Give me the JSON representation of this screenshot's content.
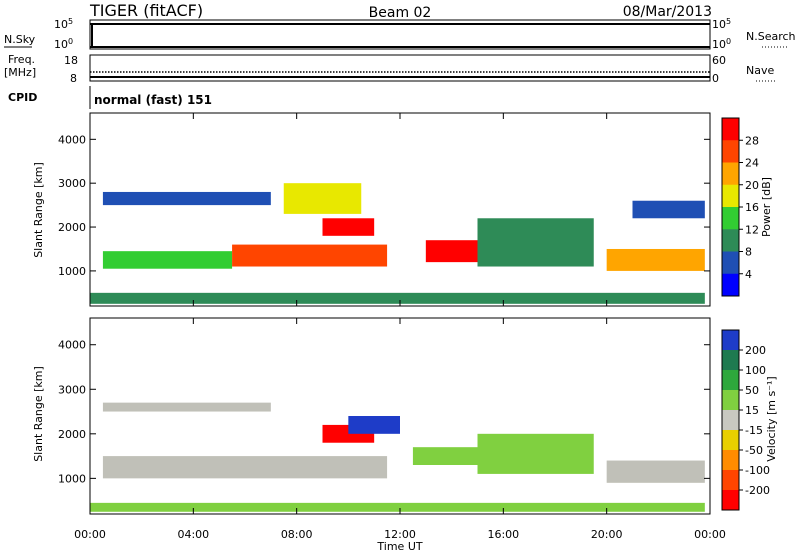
{
  "header": {
    "station": "TIGER (fitACF)",
    "beam": "Beam 02",
    "date": "08/Mar/2013"
  },
  "status_strips": {
    "nsky": {
      "label": "N.Sky",
      "left_ticks": [
        {
          "base": "10",
          "exp": "5"
        },
        {
          "base": "10",
          "exp": "0"
        }
      ],
      "right_ticks": [
        {
          "base": "10",
          "exp": "5"
        },
        {
          "base": "10",
          "exp": "0"
        }
      ],
      "right_label": "N.Search"
    },
    "freq": {
      "label_line1": "Freq.",
      "label_line2": "[MHz]",
      "left_ticks": [
        "18",
        "8"
      ],
      "right_ticks": [
        "60",
        "0"
      ],
      "right_label": "Nave"
    },
    "cpid": {
      "label": "CPID",
      "value": "normal (fast) 151"
    }
  },
  "colors": {
    "power_scale": [
      "#0000ff",
      "#1f4fb4",
      "#2e8b57",
      "#32cd32",
      "#e8e800",
      "#ffa500",
      "#ff4500",
      "#ff0000"
    ],
    "velocity_scale": [
      "#1e3cc8",
      "#1e7a50",
      "#2ea83c",
      "#80d040",
      "#c8c8c0",
      "#e8d000",
      "#ff8c00",
      "#ff4500",
      "#ff0000"
    ],
    "ground_scatter": "#c0c0b8"
  },
  "chart_data": [
    {
      "type": "heatmap",
      "title": "Power",
      "ylabel": "Slant Range [km]",
      "xlabel": "",
      "x": [
        "00:00",
        "04:00",
        "08:00",
        "12:00",
        "16:00",
        "20:00",
        "00:00"
      ],
      "y_ticks": [
        1000,
        2000,
        3000,
        4000
      ],
      "ylim": [
        200,
        4600
      ],
      "xlim_hours": [
        0,
        24
      ],
      "colorbar": {
        "label": "Power [dB]",
        "ticks": [
          "4",
          "8",
          "12",
          "16",
          "20",
          "24",
          "28"
        ],
        "range": [
          0,
          32
        ]
      },
      "regions": [
        {
          "t0": 0.5,
          "t1": 5.5,
          "r0": 1050,
          "r1": 1450,
          "value": 14
        },
        {
          "t0": 5.5,
          "t1": 11.5,
          "r0": 1100,
          "r1": 1600,
          "value": 24
        },
        {
          "t0": 9.0,
          "t1": 11.0,
          "r0": 1800,
          "r1": 2200,
          "value": 30
        },
        {
          "t0": 7.5,
          "t1": 10.5,
          "r0": 2300,
          "r1": 3000,
          "value": 18
        },
        {
          "t0": 0.5,
          "t1": 7.0,
          "r0": 2500,
          "r1": 2800,
          "value": 7
        },
        {
          "t0": 13.0,
          "t1": 15.0,
          "r0": 1200,
          "r1": 1700,
          "value": 28
        },
        {
          "t0": 15.0,
          "t1": 19.5,
          "r0": 1100,
          "r1": 2200,
          "value": 9
        },
        {
          "t0": 20.0,
          "t1": 23.8,
          "r0": 1000,
          "r1": 1500,
          "value": 22
        },
        {
          "t0": 21.0,
          "t1": 23.8,
          "r0": 2200,
          "r1": 2600,
          "value": 6
        },
        {
          "t0": 0.0,
          "t1": 23.8,
          "r0": 250,
          "r1": 500,
          "value": 8
        }
      ]
    },
    {
      "type": "heatmap",
      "title": "Velocity",
      "ylabel": "Slant Range [km]",
      "xlabel": "Time UT",
      "x": [
        "00:00",
        "04:00",
        "08:00",
        "12:00",
        "16:00",
        "20:00",
        "00:00"
      ],
      "y_ticks": [
        1000,
        2000,
        3000,
        4000
      ],
      "ylim": [
        200,
        4600
      ],
      "xlim_hours": [
        0,
        24
      ],
      "colorbar": {
        "label": "Velocity [m s⁻¹]",
        "ticks": [
          "200",
          "100",
          "50",
          "15",
          "-15",
          "-50",
          "-100",
          "-200"
        ],
        "range": [
          -250,
          250
        ]
      },
      "regions": [
        {
          "t0": 0.5,
          "t1": 11.5,
          "r0": 1000,
          "r1": 1500,
          "value": 0
        },
        {
          "t0": 9.0,
          "t1": 11.0,
          "r0": 1800,
          "r1": 2200,
          "value": -200
        },
        {
          "t0": 10.0,
          "t1": 12.0,
          "r0": 2000,
          "r1": 2400,
          "value": 200
        },
        {
          "t0": 12.5,
          "t1": 15.5,
          "r0": 1300,
          "r1": 1700,
          "value": 50
        },
        {
          "t0": 15.0,
          "t1": 19.5,
          "r0": 1100,
          "r1": 2000,
          "value": 30
        },
        {
          "t0": 20.0,
          "t1": 23.8,
          "r0": 900,
          "r1": 1400,
          "value": 0
        },
        {
          "t0": 0.5,
          "t1": 7.0,
          "r0": 2500,
          "r1": 2700,
          "value": 0
        },
        {
          "t0": 0.0,
          "t1": 23.8,
          "r0": 250,
          "r1": 450,
          "value": 40
        }
      ]
    }
  ]
}
